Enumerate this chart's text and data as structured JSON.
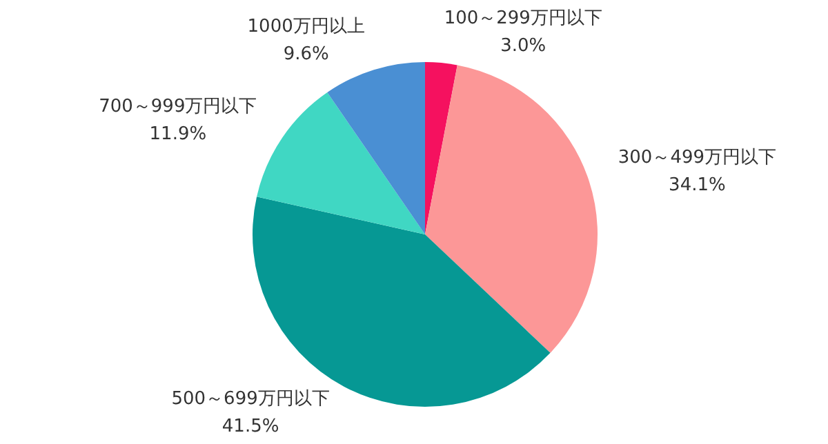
{
  "chart_data": {
    "type": "pie",
    "categories": [
      "100～299万円以下",
      "300～499万円以下",
      "500～699万円以下",
      "700～999万円以下",
      "1000万円以上"
    ],
    "values": [
      3.0,
      34.1,
      41.5,
      11.9,
      9.6
    ],
    "value_labels": [
      "3.0%",
      "34.1%",
      "41.5%",
      "11.9%",
      "9.6%"
    ],
    "colors": [
      "#f5115f",
      "#fc9797",
      "#069894",
      "#40d7c3",
      "#4a8fd3"
    ],
    "legend": false
  }
}
